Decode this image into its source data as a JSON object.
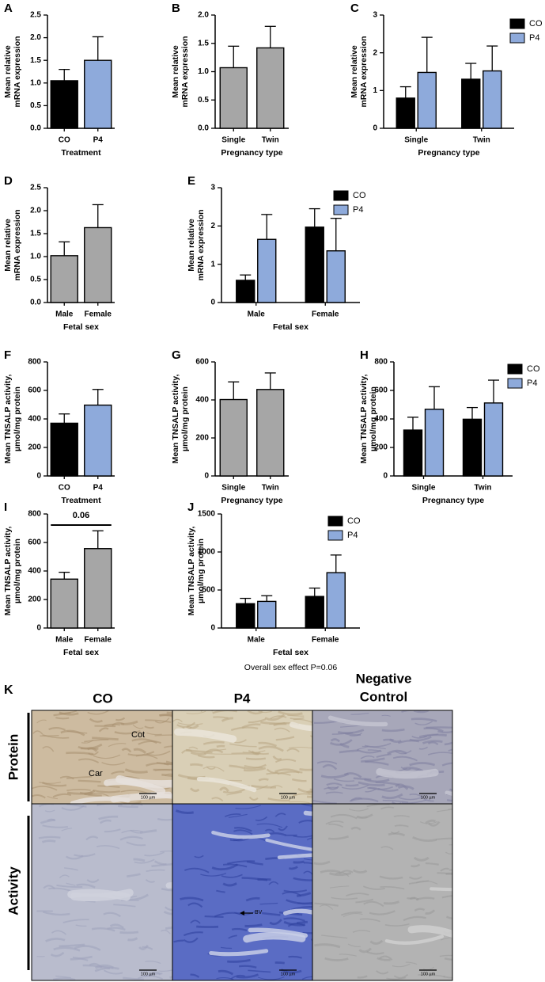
{
  "chart_data": [
    {
      "type": "bar",
      "panel": "A",
      "ylabel": [
        "Mean relative",
        "mRNA expression"
      ],
      "xlabel": "Treatment",
      "categories": [
        "CO",
        "P4"
      ],
      "values": [
        1.05,
        1.5
      ],
      "errors": [
        0.25,
        0.52
      ],
      "colors": [
        "#000000",
        "#8eaadb"
      ],
      "ylim": [
        0,
        2.5
      ],
      "yticks": [
        {
          "value": 0,
          "label": "0.0"
        },
        0.5,
        {
          "value": 1,
          "label": "1.0"
        },
        1.5,
        {
          "value": 2,
          "label": "2.0"
        },
        2.5
      ]
    },
    {
      "type": "bar",
      "panel": "B",
      "ylabel": [
        "Mean relative",
        "mRNA expression"
      ],
      "xlabel": "Pregnancy type",
      "categories": [
        "Single",
        "Twin"
      ],
      "values": [
        1.07,
        1.42
      ],
      "errors": [
        0.38,
        0.38
      ],
      "colors": [
        "#a6a6a6",
        "#a6a6a6"
      ],
      "ylim": [
        0,
        2
      ],
      "yticks": [
        {
          "value": 0,
          "label": "0.0"
        },
        0.5,
        {
          "value": 1,
          "label": "1.0"
        },
        1.5,
        {
          "value": 2,
          "label": "2.0"
        }
      ]
    },
    {
      "type": "grouped_bar",
      "panel": "C",
      "ylabel": [
        "Mean relative",
        "mRNA expression"
      ],
      "xlabel": "Pregnancy type",
      "categories": [
        "Single",
        "Twin"
      ],
      "series": [
        {
          "name": "CO",
          "color": "#000000",
          "values": [
            0.8,
            1.3
          ],
          "errors": [
            0.3,
            0.42
          ]
        },
        {
          "name": "P4",
          "color": "#8eaadb",
          "values": [
            1.48,
            1.52
          ],
          "errors": [
            0.93,
            0.66
          ]
        }
      ],
      "ylim": [
        0,
        3
      ],
      "yticks": [
        0,
        1,
        2,
        3
      ]
    },
    {
      "type": "bar",
      "panel": "D",
      "ylabel": [
        "Mean relative",
        "mRNA expression"
      ],
      "xlabel": "Fetal sex",
      "categories": [
        "Male",
        "Female"
      ],
      "values": [
        1.02,
        1.63
      ],
      "errors": [
        0.3,
        0.5
      ],
      "colors": [
        "#a6a6a6",
        "#a6a6a6"
      ],
      "ylim": [
        0,
        2.5
      ],
      "yticks": [
        {
          "value": 0,
          "label": "0.0"
        },
        0.5,
        {
          "value": 1,
          "label": "1.0"
        },
        1.5,
        {
          "value": 2,
          "label": "2.0"
        },
        2.5
      ]
    },
    {
      "type": "grouped_bar",
      "panel": "E",
      "ylabel": [
        "Mean relative",
        "mRNA expression"
      ],
      "xlabel": "Fetal sex",
      "categories": [
        "Male",
        "Female"
      ],
      "series": [
        {
          "name": "CO",
          "color": "#000000",
          "values": [
            0.58,
            1.97
          ],
          "errors": [
            0.14,
            0.48
          ]
        },
        {
          "name": "P4",
          "color": "#8eaadb",
          "values": [
            1.65,
            1.35
          ],
          "errors": [
            0.65,
            0.85
          ]
        }
      ],
      "ylim": [
        0,
        3
      ],
      "yticks": [
        0,
        1,
        2,
        3
      ]
    },
    {
      "type": "bar",
      "panel": "F",
      "ylabel": [
        "Mean TNSALP activity,",
        "µmol/mg protein"
      ],
      "xlabel": "Treatment",
      "categories": [
        "CO",
        "P4"
      ],
      "values": [
        370,
        497
      ],
      "errors": [
        65,
        110
      ],
      "colors": [
        "#000000",
        "#8eaadb"
      ],
      "ylim": [
        0,
        800
      ],
      "yticks": [
        0,
        200,
        400,
        600,
        800
      ]
    },
    {
      "type": "bar",
      "panel": "G",
      "ylabel": [
        "Mean TNSALP activity,",
        "µmol/mg protein"
      ],
      "xlabel": "Pregnancy type",
      "categories": [
        "Single",
        "Twin"
      ],
      "values": [
        402,
        455
      ],
      "errors": [
        93,
        87
      ],
      "colors": [
        "#a6a6a6",
        "#a6a6a6"
      ],
      "ylim": [
        0,
        600
      ],
      "yticks": [
        0,
        200,
        400,
        600
      ]
    },
    {
      "type": "grouped_bar",
      "panel": "H",
      "ylabel": [
        "Mean TNSALP activity,",
        "µmol/mg protein"
      ],
      "xlabel": "Pregnancy type",
      "categories": [
        "Single",
        "Twin"
      ],
      "series": [
        {
          "name": "CO",
          "color": "#000000",
          "values": [
            322,
            398
          ],
          "errors": [
            90,
            82
          ]
        },
        {
          "name": "P4",
          "color": "#8eaadb",
          "values": [
            468,
            512
          ],
          "errors": [
            158,
            160
          ]
        }
      ],
      "ylim": [
        0,
        800
      ],
      "yticks": [
        0,
        200,
        400,
        600,
        800
      ]
    },
    {
      "type": "bar",
      "panel": "I",
      "ylabel": [
        "Mean TNSALP activity,",
        "µmol/mg protein"
      ],
      "xlabel": "Fetal sex",
      "categories": [
        "Male",
        "Female"
      ],
      "values": [
        343,
        557
      ],
      "errors": [
        48,
        125
      ],
      "colors": [
        "#a6a6a6",
        "#a6a6a6"
      ],
      "ylim": [
        0,
        800
      ],
      "yticks": [
        0,
        200,
        400,
        600,
        800
      ],
      "annotation": "0.06"
    },
    {
      "type": "grouped_bar",
      "panel": "J",
      "ylabel": [
        "Mean TNSALP activity,",
        "µmol/mg protein"
      ],
      "xlabel": "Fetal sex",
      "categories": [
        "Male",
        "Female"
      ],
      "series": [
        {
          "name": "CO",
          "color": "#000000",
          "values": [
            320,
            415
          ],
          "errors": [
            70,
            110
          ]
        },
        {
          "name": "P4",
          "color": "#8eaadb",
          "values": [
            350,
            728
          ],
          "errors": [
            75,
            232
          ]
        }
      ],
      "ylim": [
        0,
        1500
      ],
      "yticks": [
        0,
        500,
        1000,
        1500
      ],
      "note": "Overall sex effect P=0.06"
    }
  ],
  "figure_k": {
    "panel": "K",
    "col_co": "CO",
    "col_p4": "P4",
    "col_negative": [
      "Negative",
      "Control"
    ],
    "row_protein": "Protein",
    "row_activity": "Activity",
    "label_car": "Car",
    "label_cot": "Cot",
    "label_bv": "BV",
    "scale_bar": "100 µm"
  }
}
